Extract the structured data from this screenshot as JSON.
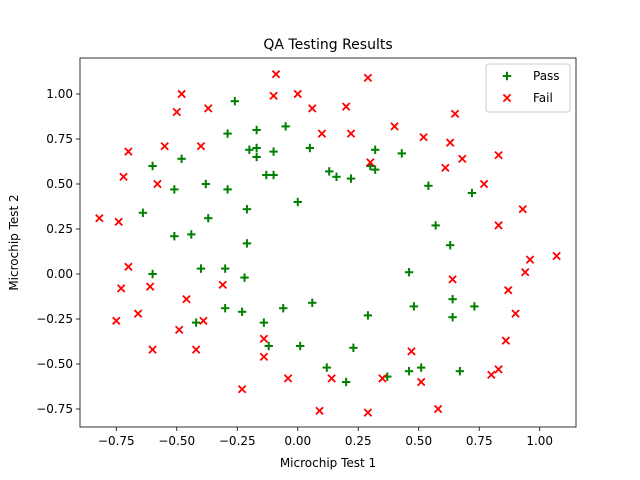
{
  "chart_data": {
    "type": "scatter",
    "title": "QA Testing Results",
    "xlabel": "Microchip Test 1",
    "ylabel": "Microchip Test 2",
    "xlim": [
      -0.9,
      1.15
    ],
    "ylim": [
      -0.85,
      1.2
    ],
    "xticks": [
      -0.75,
      -0.5,
      -0.25,
      0.0,
      0.25,
      0.5,
      0.75,
      1.0
    ],
    "yticks": [
      -0.75,
      -0.5,
      -0.25,
      0.0,
      0.25,
      0.5,
      0.75,
      1.0
    ],
    "xtick_labels": [
      "−0.75",
      "−0.50",
      "−0.25",
      "0.00",
      "0.25",
      "0.50",
      "0.75",
      "1.00"
    ],
    "ytick_labels": [
      "−0.75",
      "−0.50",
      "−0.25",
      "0.00",
      "0.25",
      "0.50",
      "0.75",
      "1.00"
    ],
    "grid": false,
    "legend_position": "top-right",
    "series": [
      {
        "name": "Pass",
        "marker": "plus",
        "color": "#008000",
        "points": [
          [
            -0.26,
            0.96
          ],
          [
            -0.29,
            0.78
          ],
          [
            -0.17,
            0.8
          ],
          [
            -0.05,
            0.82
          ],
          [
            -0.17,
            0.7
          ],
          [
            -0.2,
            0.69
          ],
          [
            -0.1,
            0.68
          ],
          [
            -0.17,
            0.65
          ],
          [
            -0.48,
            0.64
          ],
          [
            -0.6,
            0.6
          ],
          [
            0.05,
            0.7
          ],
          [
            0.32,
            0.69
          ],
          [
            0.43,
            0.67
          ],
          [
            0.3,
            0.6
          ],
          [
            0.32,
            0.58
          ],
          [
            0.13,
            0.57
          ],
          [
            -0.13,
            0.55
          ],
          [
            -0.1,
            0.55
          ],
          [
            0.16,
            0.54
          ],
          [
            0.22,
            0.53
          ],
          [
            -0.38,
            0.5
          ],
          [
            -0.29,
            0.47
          ],
          [
            -0.51,
            0.47
          ],
          [
            0.54,
            0.49
          ],
          [
            0.72,
            0.45
          ],
          [
            0.0,
            0.4
          ],
          [
            -0.21,
            0.36
          ],
          [
            -0.64,
            0.34
          ],
          [
            -0.37,
            0.31
          ],
          [
            0.57,
            0.27
          ],
          [
            -0.51,
            0.21
          ],
          [
            -0.44,
            0.22
          ],
          [
            -0.21,
            0.17
          ],
          [
            0.63,
            0.16
          ],
          [
            -0.6,
            0.0
          ],
          [
            -0.4,
            0.03
          ],
          [
            -0.3,
            0.03
          ],
          [
            -0.22,
            -0.02
          ],
          [
            0.46,
            0.01
          ],
          [
            0.64,
            -0.14
          ],
          [
            0.73,
            -0.18
          ],
          [
            0.48,
            -0.18
          ],
          [
            -0.3,
            -0.19
          ],
          [
            -0.06,
            -0.19
          ],
          [
            0.06,
            -0.16
          ],
          [
            -0.23,
            -0.21
          ],
          [
            -0.42,
            -0.27
          ],
          [
            -0.14,
            -0.27
          ],
          [
            0.29,
            -0.23
          ],
          [
            0.64,
            -0.24
          ],
          [
            -0.12,
            -0.4
          ],
          [
            0.01,
            -0.4
          ],
          [
            0.23,
            -0.41
          ],
          [
            0.12,
            -0.52
          ],
          [
            0.51,
            -0.52
          ],
          [
            0.46,
            -0.54
          ],
          [
            0.37,
            -0.57
          ],
          [
            0.67,
            -0.54
          ],
          [
            0.2,
            -0.6
          ]
        ]
      },
      {
        "name": "Fail",
        "marker": "x",
        "color": "#ff0000",
        "points": [
          [
            -0.09,
            1.11
          ],
          [
            0.29,
            1.09
          ],
          [
            -0.48,
            1.0
          ],
          [
            -0.1,
            0.99
          ],
          [
            0.0,
            1.0
          ],
          [
            -0.5,
            0.9
          ],
          [
            -0.37,
            0.92
          ],
          [
            0.06,
            0.92
          ],
          [
            0.2,
            0.93
          ],
          [
            0.65,
            0.89
          ],
          [
            0.4,
            0.82
          ],
          [
            0.1,
            0.78
          ],
          [
            0.22,
            0.78
          ],
          [
            0.52,
            0.76
          ],
          [
            0.63,
            0.73
          ],
          [
            -0.55,
            0.71
          ],
          [
            -0.4,
            0.71
          ],
          [
            -0.7,
            0.68
          ],
          [
            0.83,
            0.66
          ],
          [
            0.68,
            0.64
          ],
          [
            0.3,
            0.62
          ],
          [
            0.61,
            0.59
          ],
          [
            -0.72,
            0.54
          ],
          [
            -0.58,
            0.5
          ],
          [
            0.77,
            0.5
          ],
          [
            -0.82,
            0.31
          ],
          [
            -0.74,
            0.29
          ],
          [
            0.83,
            0.27
          ],
          [
            0.93,
            0.36
          ],
          [
            1.07,
            0.1
          ],
          [
            0.96,
            0.08
          ],
          [
            0.94,
            0.01
          ],
          [
            -0.7,
            0.04
          ],
          [
            0.64,
            -0.03
          ],
          [
            -0.73,
            -0.08
          ],
          [
            -0.61,
            -0.07
          ],
          [
            -0.31,
            -0.06
          ],
          [
            0.87,
            -0.09
          ],
          [
            -0.46,
            -0.14
          ],
          [
            0.9,
            -0.22
          ],
          [
            -0.66,
            -0.22
          ],
          [
            -0.75,
            -0.26
          ],
          [
            -0.39,
            -0.26
          ],
          [
            -0.49,
            -0.31
          ],
          [
            0.86,
            -0.37
          ],
          [
            -0.14,
            -0.36
          ],
          [
            -0.42,
            -0.42
          ],
          [
            -0.6,
            -0.42
          ],
          [
            0.47,
            -0.43
          ],
          [
            -0.14,
            -0.46
          ],
          [
            0.83,
            -0.53
          ],
          [
            0.8,
            -0.56
          ],
          [
            0.14,
            -0.58
          ],
          [
            -0.04,
            -0.58
          ],
          [
            0.35,
            -0.58
          ],
          [
            0.51,
            -0.6
          ],
          [
            -0.23,
            -0.64
          ],
          [
            0.58,
            -0.75
          ],
          [
            0.09,
            -0.76
          ],
          [
            0.29,
            -0.77
          ]
        ]
      }
    ]
  }
}
